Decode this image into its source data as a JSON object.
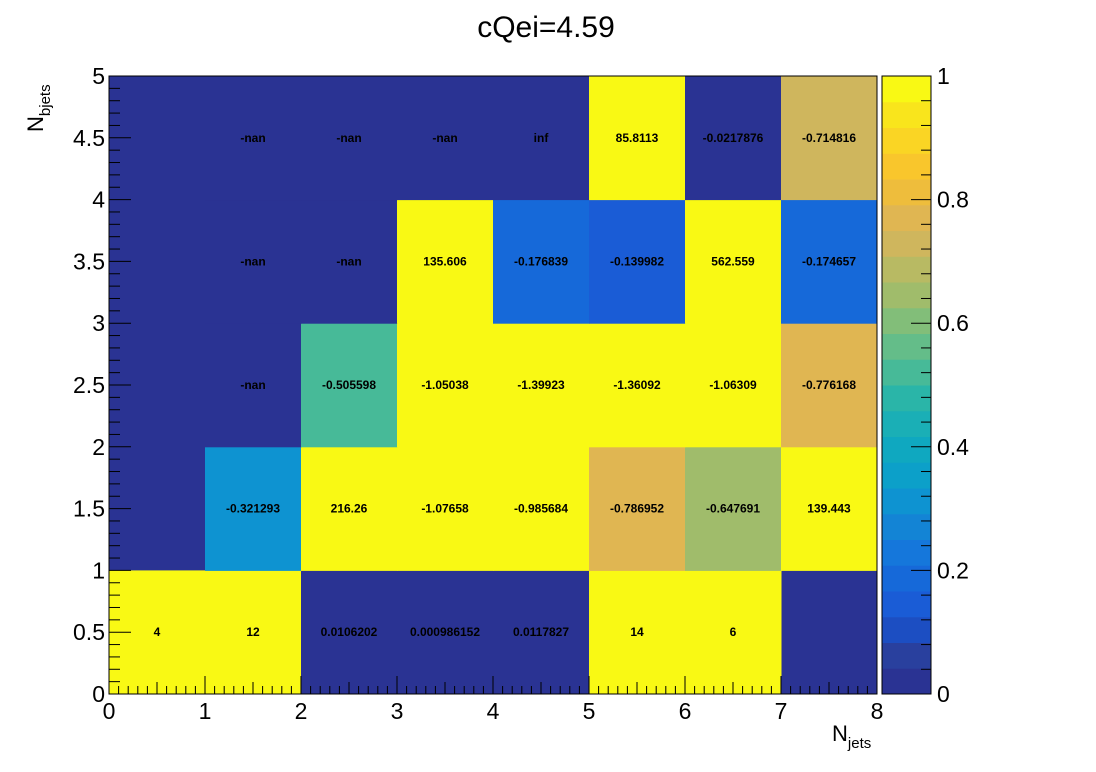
{
  "chart_data": {
    "type": "heatmap",
    "title": "cQei=4.59",
    "xlabel": {
      "main": "N",
      "sub": "jets"
    },
    "ylabel": {
      "main": "N",
      "sub": "bjets"
    },
    "xlim": [
      0,
      8
    ],
    "ylim": [
      0,
      5
    ],
    "x_edges": [
      0,
      1,
      2,
      3,
      4,
      5,
      6,
      7,
      8
    ],
    "y_edges": [
      0,
      1,
      2,
      3,
      4,
      5
    ],
    "x_ticks": [
      "0",
      "1",
      "2",
      "3",
      "4",
      "5",
      "6",
      "7",
      "8"
    ],
    "y_ticks": [
      "0",
      "0.5",
      "1",
      "1.5",
      "2",
      "2.5",
      "3",
      "3.5",
      "4",
      "4.5",
      "5"
    ],
    "zlim": [
      0,
      1
    ],
    "z_ticks": [
      "0",
      "0.2",
      "0.4",
      "0.6",
      "0.8",
      "1"
    ],
    "palette": [
      "#2a3393",
      "#29409e",
      "#1c4ec2",
      "#1a5cd6",
      "#1669d9",
      "#1577db",
      "#1384d5",
      "#0e93d1",
      "#0ca0c9",
      "#0fa8c0",
      "#1aafb6",
      "#2ab5a8",
      "#47ba98",
      "#64bd89",
      "#82be79",
      "#a0bc6b",
      "#b8ba63",
      "#cfb65d",
      "#e0b652",
      "#eebd3c",
      "#f9c62c",
      "#fad524",
      "#f9e51c",
      "#f9f914"
    ],
    "empty_color": "#2a3393",
    "cells": [
      {
        "x": 0.5,
        "y": 0.5,
        "z": 1,
        "label": "4"
      },
      {
        "x": 1.5,
        "y": 0.5,
        "z": 1,
        "label": "12"
      },
      {
        "x": 2.5,
        "y": 0.5,
        "z": 0.0106202,
        "label": "0.0106202"
      },
      {
        "x": 3.5,
        "y": 0.5,
        "z": 0.000986152,
        "label": "0.000986152"
      },
      {
        "x": 4.5,
        "y": 0.5,
        "z": 0.0117827,
        "label": "0.0117827"
      },
      {
        "x": 5.5,
        "y": 0.5,
        "z": 1,
        "label": "14"
      },
      {
        "x": 6.5,
        "y": 0.5,
        "z": 1,
        "label": "6"
      },
      {
        "x": 1.5,
        "y": 1.5,
        "z": 0.32,
        "label": "-0.321293"
      },
      {
        "x": 2.5,
        "y": 1.5,
        "z": 1,
        "label": "216.26"
      },
      {
        "x": 3.5,
        "y": 1.5,
        "z": 1,
        "label": "-1.07658"
      },
      {
        "x": 4.5,
        "y": 1.5,
        "z": 1,
        "label": "-0.985684"
      },
      {
        "x": 5.5,
        "y": 1.5,
        "z": 0.79,
        "label": "-0.786952"
      },
      {
        "x": 6.5,
        "y": 1.5,
        "z": 0.65,
        "label": "-0.647691"
      },
      {
        "x": 7.5,
        "y": 1.5,
        "z": 1,
        "label": "139.443"
      },
      {
        "x": 1.5,
        "y": 2.5,
        "z": null,
        "label": "-nan"
      },
      {
        "x": 2.5,
        "y": 2.5,
        "z": 0.51,
        "label": "-0.505598"
      },
      {
        "x": 3.5,
        "y": 2.5,
        "z": 1,
        "label": "-1.05038"
      },
      {
        "x": 4.5,
        "y": 2.5,
        "z": 1,
        "label": "-1.39923"
      },
      {
        "x": 5.5,
        "y": 2.5,
        "z": 1,
        "label": "-1.36092"
      },
      {
        "x": 6.5,
        "y": 2.5,
        "z": 1,
        "label": "-1.06309"
      },
      {
        "x": 7.5,
        "y": 2.5,
        "z": 0.78,
        "label": "-0.776168"
      },
      {
        "x": 1.5,
        "y": 3.5,
        "z": null,
        "label": "-nan"
      },
      {
        "x": 2.5,
        "y": 3.5,
        "z": null,
        "label": "-nan"
      },
      {
        "x": 3.5,
        "y": 3.5,
        "z": 1,
        "label": "135.606"
      },
      {
        "x": 4.5,
        "y": 3.5,
        "z": 0.18,
        "label": "-0.176839"
      },
      {
        "x": 5.5,
        "y": 3.5,
        "z": 0.14,
        "label": "-0.139982"
      },
      {
        "x": 6.5,
        "y": 3.5,
        "z": 1,
        "label": "562.559"
      },
      {
        "x": 7.5,
        "y": 3.5,
        "z": 0.17,
        "label": "-0.174657"
      },
      {
        "x": 1.5,
        "y": 4.5,
        "z": null,
        "label": "-nan"
      },
      {
        "x": 2.5,
        "y": 4.5,
        "z": null,
        "label": "-nan"
      },
      {
        "x": 3.5,
        "y": 4.5,
        "z": null,
        "label": "-nan"
      },
      {
        "x": 4.5,
        "y": 4.5,
        "z": null,
        "label": "inf"
      },
      {
        "x": 5.5,
        "y": 4.5,
        "z": 1,
        "label": "85.8113"
      },
      {
        "x": 6.5,
        "y": 4.5,
        "z": 0.02,
        "label": "-0.0217876"
      },
      {
        "x": 7.5,
        "y": 4.5,
        "z": 0.71,
        "label": "-0.714816"
      }
    ]
  }
}
